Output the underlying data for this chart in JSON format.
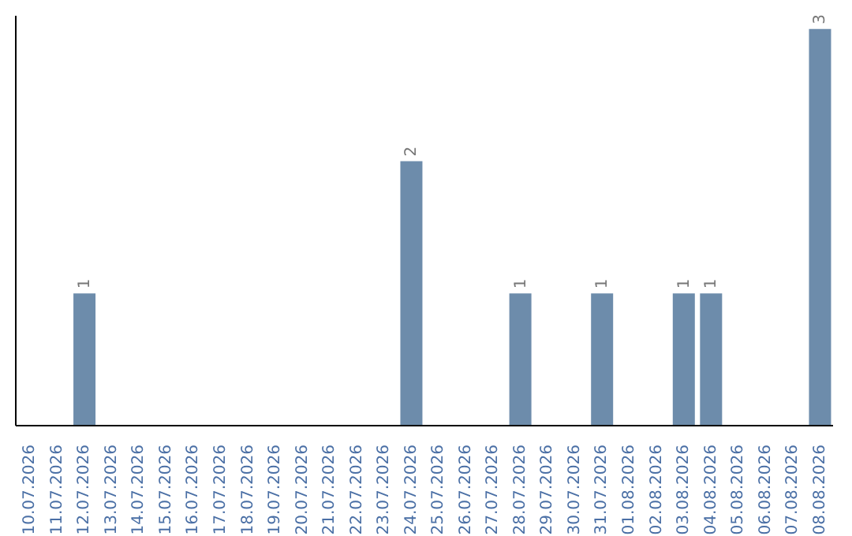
{
  "chart_data": {
    "type": "bar",
    "categories": [
      "10.07.2026",
      "11.07.2026",
      "12.07.2026",
      "13.07.2026",
      "14.07.2026",
      "15.07.2026",
      "16.07.2026",
      "17.07.2026",
      "18.07.2026",
      "19.07.2026",
      "20.07.2026",
      "21.07.2026",
      "22.07.2026",
      "23.07.2026",
      "24.07.2026",
      "25.07.2026",
      "26.07.2026",
      "27.07.2026",
      "28.07.2026",
      "29.07.2026",
      "30.07.2026",
      "31.07.2026",
      "01.08.2026",
      "02.08.2026",
      "03.08.2026",
      "04.08.2026",
      "05.08.2026",
      "06.08.2026",
      "07.08.2026",
      "08.08.2026"
    ],
    "values": [
      0,
      0,
      1,
      0,
      0,
      0,
      0,
      0,
      0,
      0,
      0,
      0,
      0,
      0,
      2,
      0,
      0,
      0,
      1,
      0,
      0,
      1,
      0,
      0,
      1,
      1,
      0,
      0,
      0,
      3
    ],
    "value_labels": [
      null,
      null,
      "1",
      null,
      null,
      null,
      null,
      null,
      null,
      null,
      null,
      null,
      null,
      null,
      "2",
      null,
      null,
      null,
      "1",
      null,
      null,
      "1",
      null,
      null,
      "1",
      "1",
      null,
      null,
      null,
      "3"
    ],
    "color": "#6d8cab",
    "ylim": [
      0,
      3.1
    ],
    "tick_labels": "x",
    "grid": false,
    "legend": false
  }
}
